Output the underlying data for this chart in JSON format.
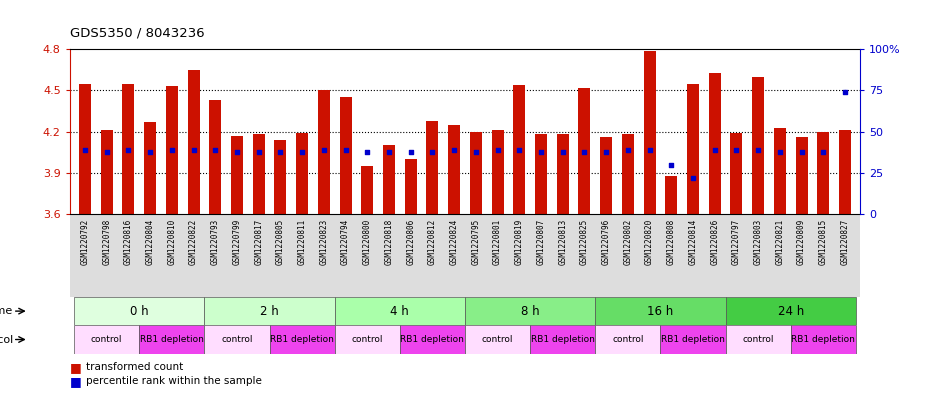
{
  "title": "GDS5350 / 8043236",
  "samples": [
    "GSM1220792",
    "GSM1220798",
    "GSM1220816",
    "GSM1220804",
    "GSM1220810",
    "GSM1220822",
    "GSM1220793",
    "GSM1220799",
    "GSM1220817",
    "GSM1220805",
    "GSM1220811",
    "GSM1220823",
    "GSM1220794",
    "GSM1220800",
    "GSM1220818",
    "GSM1220806",
    "GSM1220812",
    "GSM1220824",
    "GSM1220795",
    "GSM1220801",
    "GSM1220819",
    "GSM1220807",
    "GSM1220813",
    "GSM1220825",
    "GSM1220796",
    "GSM1220802",
    "GSM1220820",
    "GSM1220808",
    "GSM1220814",
    "GSM1220826",
    "GSM1220797",
    "GSM1220803",
    "GSM1220821",
    "GSM1220809",
    "GSM1220815",
    "GSM1220827"
  ],
  "bar_values": [
    4.55,
    4.21,
    4.55,
    4.27,
    4.53,
    4.65,
    4.43,
    4.17,
    4.18,
    4.14,
    4.19,
    4.5,
    4.45,
    3.95,
    4.1,
    4.0,
    4.28,
    4.25,
    4.2,
    4.21,
    4.54,
    4.18,
    4.18,
    4.52,
    4.16,
    4.18,
    4.79,
    3.88,
    4.55,
    4.63,
    4.19,
    4.6,
    4.23,
    4.16,
    4.2,
    4.21
  ],
  "percentile_values": [
    39,
    38,
    39,
    38,
    39,
    39,
    39,
    38,
    38,
    38,
    38,
    39,
    39,
    38,
    38,
    38,
    38,
    39,
    38,
    39,
    39,
    38,
    38,
    38,
    38,
    39,
    39,
    30,
    22,
    39,
    39,
    39,
    38,
    38,
    38,
    74
  ],
  "baseline": 3.6,
  "ylim_left": [
    3.6,
    4.8
  ],
  "ylim_right": [
    0,
    100
  ],
  "yticks_left": [
    3.6,
    3.9,
    4.2,
    4.5,
    4.8
  ],
  "yticks_right": [
    0,
    25,
    50,
    75,
    100
  ],
  "bar_color": "#cc1100",
  "dot_color": "#0000cc",
  "bg_color": "#ffffff",
  "time_groups": [
    {
      "label": "0 h",
      "start": 0,
      "end": 6,
      "color": "#dfffdf"
    },
    {
      "label": "2 h",
      "start": 6,
      "end": 12,
      "color": "#ccffcc"
    },
    {
      "label": "4 h",
      "start": 12,
      "end": 18,
      "color": "#aaffaa"
    },
    {
      "label": "8 h",
      "start": 18,
      "end": 24,
      "color": "#88ee88"
    },
    {
      "label": "16 h",
      "start": 24,
      "end": 30,
      "color": "#66dd66"
    },
    {
      "label": "24 h",
      "start": 30,
      "end": 36,
      "color": "#44cc44"
    }
  ],
  "protocol_groups": [
    {
      "label": "control",
      "start": 0,
      "end": 3,
      "color": "#ffddff"
    },
    {
      "label": "RB1 depletion",
      "start": 3,
      "end": 6,
      "color": "#ee44ee"
    },
    {
      "label": "control",
      "start": 6,
      "end": 9,
      "color": "#ffddff"
    },
    {
      "label": "RB1 depletion",
      "start": 9,
      "end": 12,
      "color": "#ee44ee"
    },
    {
      "label": "control",
      "start": 12,
      "end": 15,
      "color": "#ffddff"
    },
    {
      "label": "RB1 depletion",
      "start": 15,
      "end": 18,
      "color": "#ee44ee"
    },
    {
      "label": "control",
      "start": 18,
      "end": 21,
      "color": "#ffddff"
    },
    {
      "label": "RB1 depletion",
      "start": 21,
      "end": 24,
      "color": "#ee44ee"
    },
    {
      "label": "control",
      "start": 24,
      "end": 27,
      "color": "#ffddff"
    },
    {
      "label": "RB1 depletion",
      "start": 27,
      "end": 30,
      "color": "#ee44ee"
    },
    {
      "label": "control",
      "start": 30,
      "end": 33,
      "color": "#ffddff"
    },
    {
      "label": "RB1 depletion",
      "start": 33,
      "end": 36,
      "color": "#ee44ee"
    }
  ],
  "sample_area_color": "#dddddd",
  "bar_width": 0.55,
  "grid_lines": [
    3.9,
    4.2,
    4.5
  ]
}
